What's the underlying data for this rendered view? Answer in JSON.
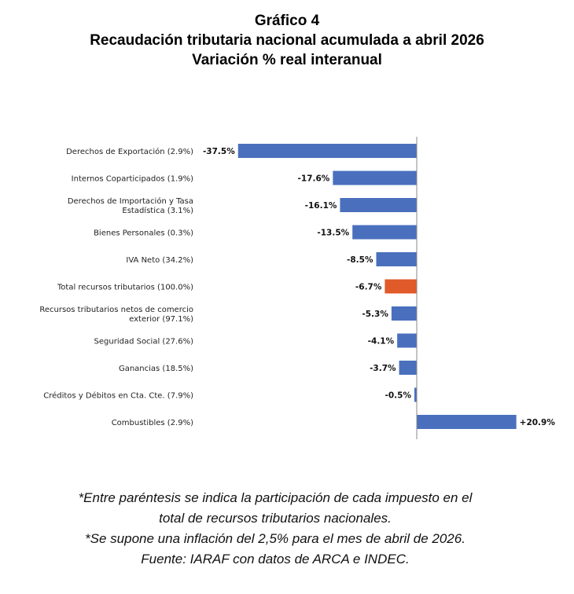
{
  "header": {
    "line1": "Gráfico 4",
    "line2": "Recaudación tributaria nacional acumulada a abril 2026",
    "line3": "Variación % real interanual"
  },
  "chart_data": {
    "type": "bar",
    "orientation": "horizontal",
    "title": "Recaudación tributaria nacional acumulada a abril 2026",
    "subtitle": "Variación % real interanual",
    "xlabel": "",
    "ylabel": "",
    "xlim": [
      -37.5,
      20.9
    ],
    "grid": false,
    "legend": "none",
    "colors": {
      "default": "#4a70bd",
      "highlight": "#e05a2a",
      "axis": "#888888"
    },
    "categories": [
      "Derechos de Exportación (2.9%)",
      "Internos Coparticipados (1.9%)",
      "Derechos de Importación y Tasa Estadística (3.1%)",
      "Bienes Personales (0.3%)",
      "IVA Neto (34.2%)",
      "Total recursos tributarios (100.0%)",
      "Recursos tributarios netos de comercio exterior (97.1%)",
      "Seguridad Social (27.6%)",
      "Ganancias (18.5%)",
      "Créditos y Débitos en Cta. Cte. (7.9%)",
      "Combustibles (2.9%)"
    ],
    "category_lines": [
      [
        "Derechos de Exportación (2.9%)"
      ],
      [
        "Internos Coparticipados (1.9%)"
      ],
      [
        "Derechos de Importación y Tasa",
        "Estadística (3.1%)"
      ],
      [
        "Bienes Personales (0.3%)"
      ],
      [
        "IVA Neto (34.2%)"
      ],
      [
        "Total recursos tributarios (100.0%)"
      ],
      [
        "Recursos tributarios netos de comercio",
        "exterior (97.1%)"
      ],
      [
        "Seguridad Social (27.6%)"
      ],
      [
        "Ganancias (18.5%)"
      ],
      [
        "Créditos y Débitos en Cta. Cte. (7.9%)"
      ],
      [
        "Combustibles (2.9%)"
      ]
    ],
    "values": [
      -37.5,
      -17.6,
      -16.1,
      -13.5,
      -8.5,
      -6.7,
      -5.3,
      -4.1,
      -3.7,
      -0.5,
      20.9
    ],
    "data_labels": [
      "-37.5%",
      "-17.6%",
      "-16.1%",
      "-13.5%",
      "-8.5%",
      "-6.7%",
      "-5.3%",
      "-4.1%",
      "-3.7%",
      "-0.5%",
      "+20.9%"
    ],
    "highlight_index": 5
  },
  "notes": {
    "line1": "*Entre paréntesis se indica la participación de cada impuesto en el",
    "line2": "total de recursos tributarios nacionales.",
    "line3": "*Se supone una inflación del 2,5% para el mes de abril de 2026.",
    "line4": "Fuente: IARAF con datos de ARCA e INDEC."
  }
}
